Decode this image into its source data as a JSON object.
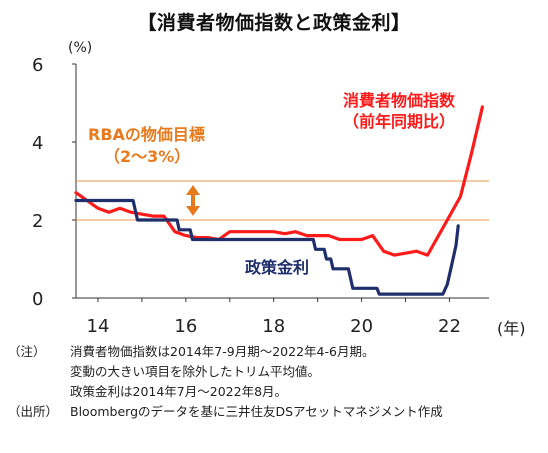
{
  "title": "【消費者物価指数と政策金利】",
  "chart_data": {
    "type": "line",
    "x_range": [
      2014,
      2022
    ],
    "y_range": [
      0,
      6
    ],
    "y_unit": "(%)",
    "x_unit": "(年)",
    "x_ticks": [
      {
        "value": 2014,
        "label": "14"
      },
      {
        "value": 2016,
        "label": "16"
      },
      {
        "value": 2018,
        "label": "18"
      },
      {
        "value": 2020,
        "label": "20"
      },
      {
        "value": 2022,
        "label": "22"
      }
    ],
    "y_ticks": [
      {
        "value": 0,
        "label": "0"
      },
      {
        "value": 2,
        "label": "2"
      },
      {
        "value": 4,
        "label": "4"
      },
      {
        "value": 6,
        "label": "6"
      }
    ],
    "target_band": {
      "low": 2,
      "high": 3,
      "label_line1": "RBAの物価目標",
      "label_line2": "（2～3%）",
      "color": "#e87a1e"
    },
    "series": [
      {
        "name": "消費者物価指数",
        "name_line2": "（前年同期比）",
        "color": "#ff1a1a",
        "points": [
          [
            2014.0,
            2.7
          ],
          [
            2014.25,
            2.5
          ],
          [
            2014.5,
            2.3
          ],
          [
            2014.75,
            2.2
          ],
          [
            2015.0,
            2.3
          ],
          [
            2015.25,
            2.2
          ],
          [
            2015.5,
            2.15
          ],
          [
            2015.75,
            2.1
          ],
          [
            2016.0,
            2.1
          ],
          [
            2016.25,
            1.7
          ],
          [
            2016.5,
            1.6
          ],
          [
            2016.75,
            1.55
          ],
          [
            2017.0,
            1.55
          ],
          [
            2017.25,
            1.5
          ],
          [
            2017.5,
            1.7
          ],
          [
            2017.75,
            1.7
          ],
          [
            2018.0,
            1.7
          ],
          [
            2018.25,
            1.7
          ],
          [
            2018.5,
            1.7
          ],
          [
            2018.75,
            1.65
          ],
          [
            2019.0,
            1.7
          ],
          [
            2019.25,
            1.6
          ],
          [
            2019.5,
            1.6
          ],
          [
            2019.75,
            1.6
          ],
          [
            2020.0,
            1.5
          ],
          [
            2020.25,
            1.5
          ],
          [
            2020.5,
            1.5
          ],
          [
            2020.75,
            1.6
          ],
          [
            2021.0,
            1.2
          ],
          [
            2021.25,
            1.1
          ],
          [
            2021.5,
            1.15
          ],
          [
            2021.75,
            1.2
          ],
          [
            2022.0,
            1.1
          ],
          [
            2022.25,
            1.6
          ],
          [
            2022.5,
            2.1
          ],
          [
            2022.75,
            2.6
          ],
          [
            2023.0,
            3.7
          ],
          [
            2023.25,
            4.9
          ]
        ]
      },
      {
        "name": "政策金利",
        "color": "#1f2f6b",
        "points": [
          [
            2014.0,
            2.5
          ],
          [
            2015.3,
            2.5
          ],
          [
            2015.35,
            2.25
          ],
          [
            2015.4,
            2.0
          ],
          [
            2016.3,
            2.0
          ],
          [
            2016.35,
            1.75
          ],
          [
            2016.6,
            1.75
          ],
          [
            2016.65,
            1.5
          ],
          [
            2019.4,
            1.5
          ],
          [
            2019.45,
            1.25
          ],
          [
            2019.65,
            1.25
          ],
          [
            2019.7,
            1.0
          ],
          [
            2019.8,
            1.0
          ],
          [
            2019.85,
            0.75
          ],
          [
            2020.2,
            0.75
          ],
          [
            2020.25,
            0.5
          ],
          [
            2020.3,
            0.25
          ],
          [
            2020.85,
            0.25
          ],
          [
            2020.9,
            0.1
          ],
          [
            2022.35,
            0.1
          ],
          [
            2022.45,
            0.35
          ],
          [
            2022.55,
            0.85
          ],
          [
            2022.65,
            1.35
          ],
          [
            2022.7,
            1.85
          ]
        ]
      }
    ],
    "grid": false,
    "notes": [
      {
        "tag": "（注）",
        "text": "消費者物価指数は2014年7-9月期～2022年4-6月期。"
      },
      {
        "tag": "",
        "text": "変動の大きい項目を除外したトリム平均値。"
      },
      {
        "tag": "",
        "text": "政策金利は2014年7月～2022年8月。"
      },
      {
        "tag": "（出所）",
        "text": "Bloombergのデータを基に三井住友DSアセットマネジメント作成"
      }
    ]
  }
}
